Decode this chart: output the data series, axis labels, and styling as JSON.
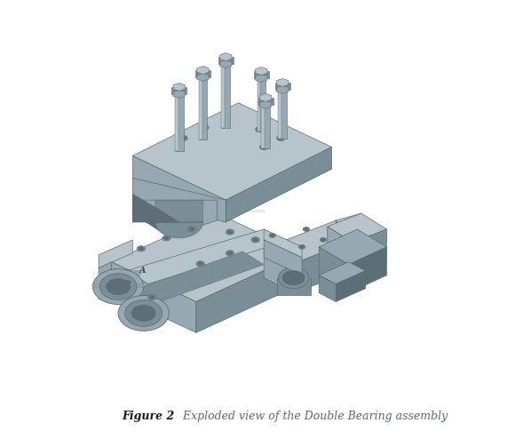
{
  "caption_bold": "Figure 2",
  "caption_italic": "  Exploded view of the Double Bearing assembly",
  "bg_color": "#ffffff",
  "cl": "#b8c4cc",
  "cm": "#96a8b2",
  "cd": "#7a8e98",
  "cdd": "#5e6e76",
  "figsize": [
    5.71,
    5.03
  ],
  "dpi": 100
}
